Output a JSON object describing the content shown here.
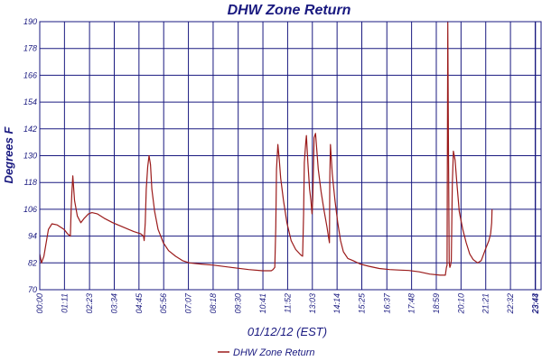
{
  "chart_data": {
    "type": "line",
    "title": "DHW Zone Return",
    "xlabel": "01/12/12 (EST)",
    "ylabel": "Degrees F",
    "ylim": [
      70,
      190
    ],
    "y_ticks": [
      "70",
      "82",
      "94",
      "106",
      "118",
      "130",
      "142",
      "154",
      "166",
      "178",
      "190"
    ],
    "x_range_minutes": [
      0,
      1440
    ],
    "x_ticks": [
      {
        "label": "00:00",
        "t": 0
      },
      {
        "label": "01:11",
        "t": 71
      },
      {
        "label": "02:23",
        "t": 143
      },
      {
        "label": "03:34",
        "t": 214
      },
      {
        "label": "04:45",
        "t": 285
      },
      {
        "label": "05:56",
        "t": 356
      },
      {
        "label": "07:07",
        "t": 427
      },
      {
        "label": "08:18",
        "t": 498
      },
      {
        "label": "09:30",
        "t": 570
      },
      {
        "label": "10:41",
        "t": 641
      },
      {
        "label": "11:52",
        "t": 712
      },
      {
        "label": "13:03",
        "t": 783
      },
      {
        "label": "14:14",
        "t": 854
      },
      {
        "label": "15:25",
        "t": 925
      },
      {
        "label": "16:37",
        "t": 997
      },
      {
        "label": "17:48",
        "t": 1068
      },
      {
        "label": "18:59",
        "t": 1139
      },
      {
        "label": "20:10",
        "t": 1210
      },
      {
        "label": "21:21",
        "t": 1281
      },
      {
        "label": "22:32",
        "t": 1352
      },
      {
        "label": "23:43",
        "t": 1423
      },
      {
        "label": "23:44",
        "t": 1424
      }
    ],
    "grid": true,
    "legend": "bottom-center",
    "series": [
      {
        "name": "DHW Zone Return",
        "color": "#9b1b1b",
        "points": [
          [
            0,
            86
          ],
          [
            5,
            82
          ],
          [
            12,
            85
          ],
          [
            25,
            97
          ],
          [
            35,
            99.5
          ],
          [
            50,
            99
          ],
          [
            70,
            97
          ],
          [
            80,
            95
          ],
          [
            88,
            94
          ],
          [
            90,
            105
          ],
          [
            92,
            113
          ],
          [
            95,
            121
          ],
          [
            100,
            110
          ],
          [
            108,
            103
          ],
          [
            118,
            100
          ],
          [
            128,
            102
          ],
          [
            140,
            104
          ],
          [
            150,
            104.5
          ],
          [
            165,
            104
          ],
          [
            185,
            102
          ],
          [
            210,
            100
          ],
          [
            240,
            98
          ],
          [
            270,
            96
          ],
          [
            290,
            95
          ],
          [
            298,
            94
          ],
          [
            300,
            92
          ],
          [
            303,
            100
          ],
          [
            306,
            115
          ],
          [
            310,
            125
          ],
          [
            314,
            130
          ],
          [
            318,
            126
          ],
          [
            322,
            115
          ],
          [
            330,
            105
          ],
          [
            340,
            97
          ],
          [
            355,
            91
          ],
          [
            370,
            87.5
          ],
          [
            390,
            85
          ],
          [
            410,
            83
          ],
          [
            430,
            82
          ],
          [
            460,
            81.5
          ],
          [
            500,
            81
          ],
          [
            550,
            80
          ],
          [
            600,
            79
          ],
          [
            640,
            78.5
          ],
          [
            665,
            78.5
          ],
          [
            670,
            79
          ],
          [
            675,
            80
          ],
          [
            678,
            98
          ],
          [
            680,
            124
          ],
          [
            684,
            135
          ],
          [
            688,
            128
          ],
          [
            692,
            120
          ],
          [
            700,
            110
          ],
          [
            710,
            100
          ],
          [
            722,
            92
          ],
          [
            735,
            88
          ],
          [
            750,
            85.5
          ],
          [
            755,
            85
          ],
          [
            758,
            104
          ],
          [
            760,
            127
          ],
          [
            764,
            136
          ],
          [
            766,
            139
          ],
          [
            768,
            133
          ],
          [
            770,
            127
          ],
          [
            775,
            115
          ],
          [
            779,
            110
          ],
          [
            782,
            104
          ],
          [
            784,
            110
          ],
          [
            788,
            138
          ],
          [
            792,
            140
          ],
          [
            796,
            132
          ],
          [
            800,
            124
          ],
          [
            808,
            114
          ],
          [
            816,
            106
          ],
          [
            825,
            98
          ],
          [
            830,
            93
          ],
          [
            832,
            91
          ],
          [
            833,
            120
          ],
          [
            835,
            135
          ],
          [
            840,
            122
          ],
          [
            848,
            110
          ],
          [
            856,
            100
          ],
          [
            864,
            92
          ],
          [
            872,
            87
          ],
          [
            885,
            84
          ],
          [
            900,
            83
          ],
          [
            920,
            81.5
          ],
          [
            945,
            80.5
          ],
          [
            975,
            79.5
          ],
          [
            1005,
            79
          ],
          [
            1030,
            78.8
          ],
          [
            1060,
            78.6
          ],
          [
            1090,
            78
          ],
          [
            1120,
            77
          ],
          [
            1150,
            76.5
          ],
          [
            1165,
            76.5
          ],
          [
            1168,
            80
          ],
          [
            1170,
            81
          ],
          [
            1172,
            190
          ],
          [
            1174,
            130
          ],
          [
            1176,
            82
          ],
          [
            1178,
            80
          ],
          [
            1180,
            81
          ],
          [
            1182,
            83
          ],
          [
            1185,
            117
          ],
          [
            1188,
            132
          ],
          [
            1193,
            128
          ],
          [
            1198,
            118
          ],
          [
            1205,
            105
          ],
          [
            1215,
            97
          ],
          [
            1225,
            91
          ],
          [
            1235,
            86
          ],
          [
            1245,
            83.5
          ],
          [
            1258,
            82
          ],
          [
            1268,
            83
          ],
          [
            1280,
            88
          ],
          [
            1290,
            92
          ],
          [
            1295,
            95
          ],
          [
            1298,
            100
          ],
          [
            1299,
            106
          ]
        ]
      }
    ]
  }
}
